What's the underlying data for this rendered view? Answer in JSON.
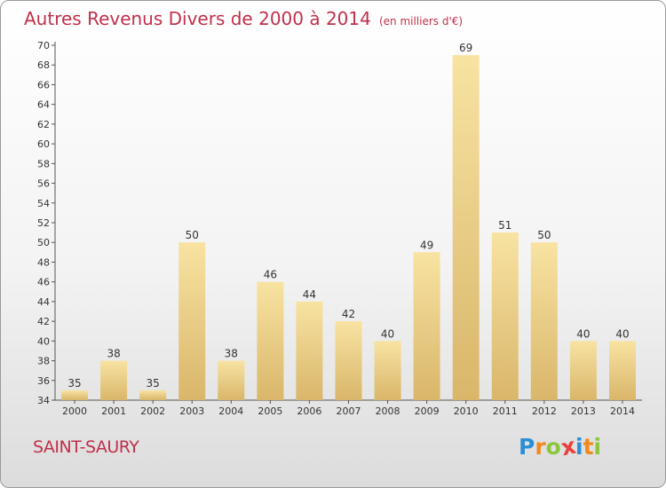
{
  "title": {
    "main": "Autres Revenus Divers de 2000 à 2014",
    "unit": "(en milliers d'€)"
  },
  "commune": "SAINT-SAURY",
  "logo": {
    "letters": [
      {
        "ch": "P",
        "color": "#2a8fd6"
      },
      {
        "ch": "r",
        "color": "#f08a1c"
      },
      {
        "ch": "o",
        "color": "#8cc63f"
      },
      {
        "ch": "x",
        "color": "#e8403a"
      },
      {
        "ch": "i",
        "color": "#2a8fd6"
      },
      {
        "ch": "t",
        "color": "#f08a1c"
      },
      {
        "ch": "i",
        "color": "#8cc63f"
      }
    ]
  },
  "colors": {
    "bar_light": "#f8e3a2",
    "bar_dark": "#d9b66a",
    "title": "#c0304a"
  },
  "chart_data": {
    "type": "bar",
    "categories": [
      "2000",
      "2001",
      "2002",
      "2003",
      "2004",
      "2005",
      "2006",
      "2007",
      "2008",
      "2009",
      "2010",
      "2011",
      "2012",
      "2013",
      "2014"
    ],
    "values": [
      35,
      38,
      35,
      50,
      38,
      46,
      44,
      42,
      40,
      49,
      69,
      51,
      50,
      40,
      40
    ],
    "ylim": [
      34,
      70
    ],
    "yticks": [
      34,
      36,
      38,
      40,
      42,
      44,
      46,
      48,
      50,
      52,
      54,
      56,
      58,
      60,
      62,
      64,
      66,
      68,
      70
    ],
    "grid": false,
    "data_labels": true
  }
}
